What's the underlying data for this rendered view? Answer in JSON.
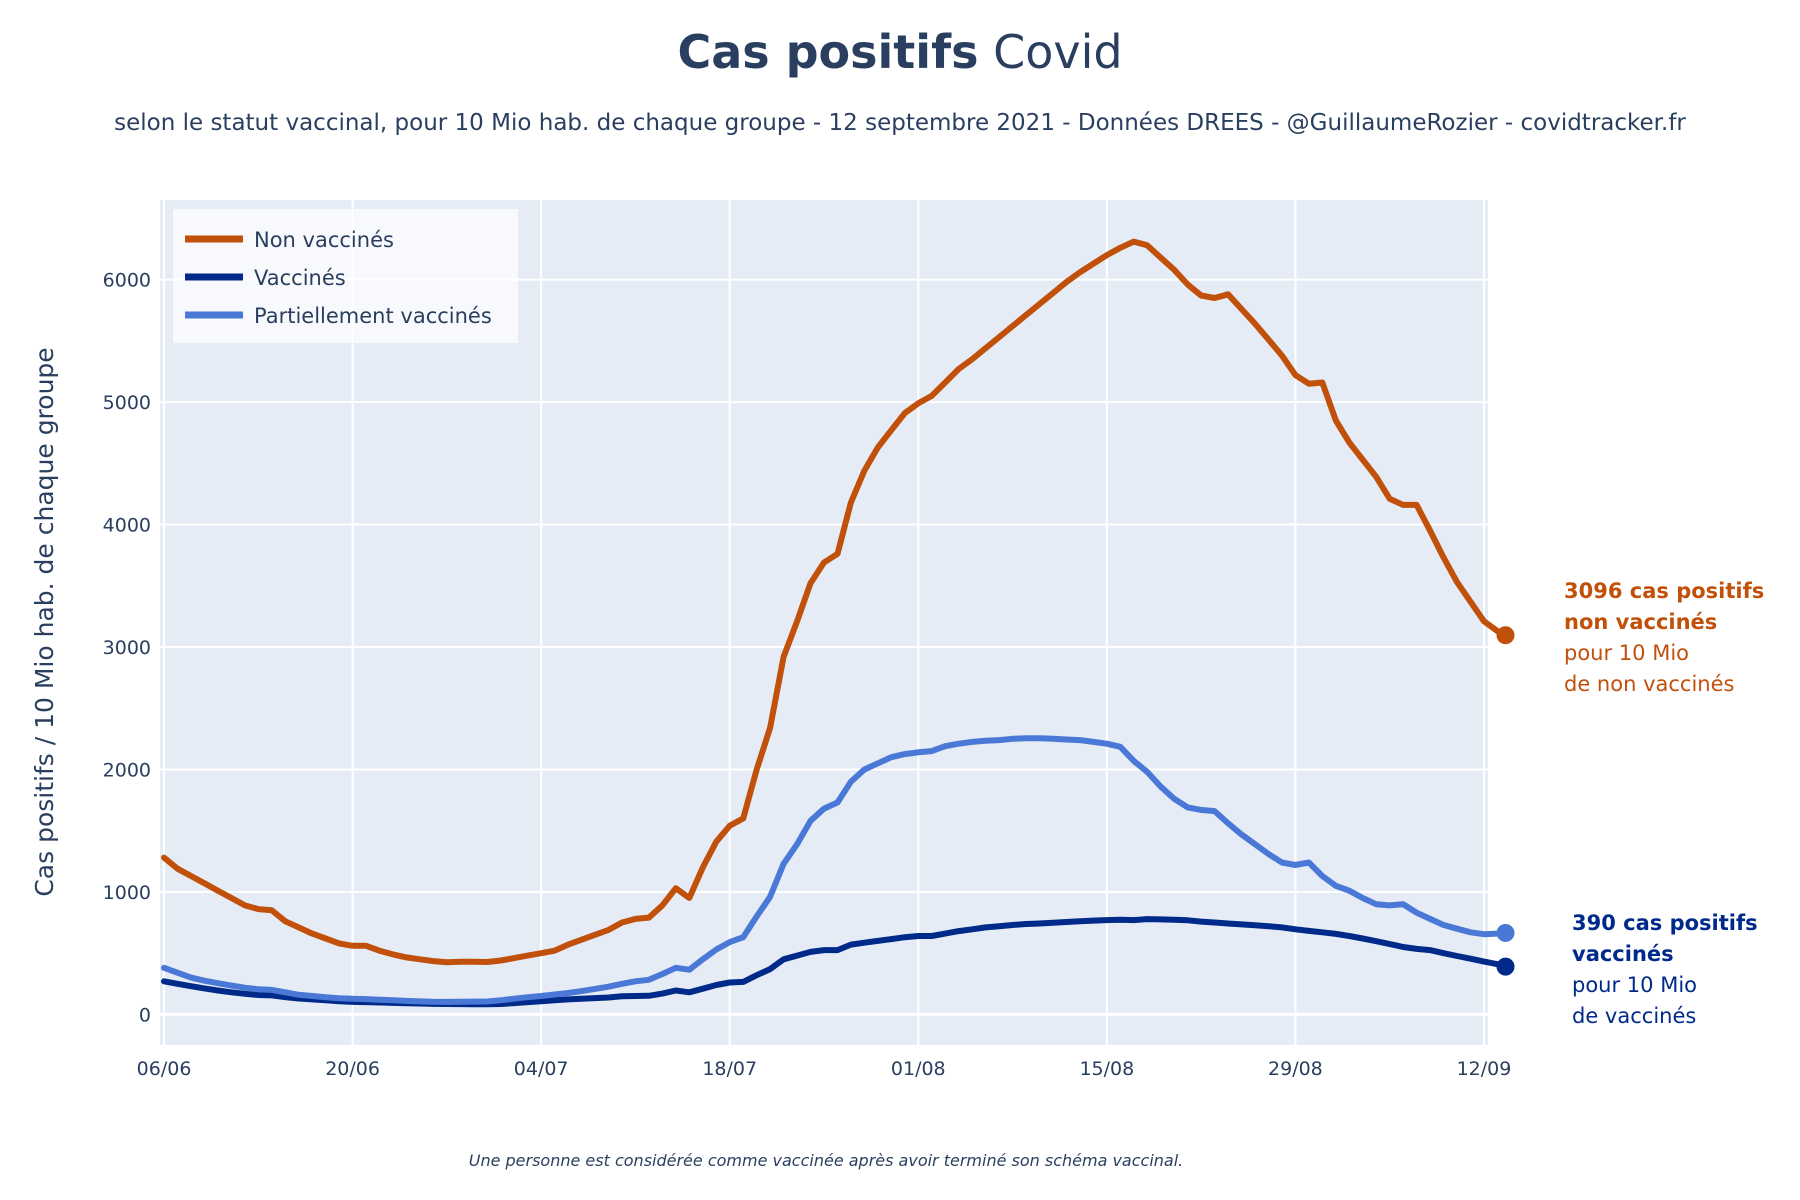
{
  "chart_data": {
    "type": "line",
    "title_bold": "Cas positifs",
    "title_rest": " Covid",
    "subtitle": "selon le statut vaccinal, pour 10 Mio hab. de chaque groupe - 12 septembre 2021 - Données DREES - @GuillaumeRozier - covidtracker.fr",
    "ylabel": "Cas positifs / 10 Mio hab. de chaque groupe",
    "xlabel": "",
    "footnote": "Une personne est considérée comme vaccinée après avoir terminé son schéma vaccinal.",
    "ylim": [
      -250,
      6650
    ],
    "yticks": [
      0,
      1000,
      2000,
      3000,
      4000,
      5000,
      6000
    ],
    "xlim": [
      -0.3,
      98.3
    ],
    "xticks": [
      {
        "day": 0,
        "label": "06/06"
      },
      {
        "day": 14,
        "label": "20/06"
      },
      {
        "day": 28,
        "label": "04/07"
      },
      {
        "day": 42,
        "label": "18/07"
      },
      {
        "day": 56,
        "label": "01/08"
      },
      {
        "day": 70,
        "label": "15/08"
      },
      {
        "day": 84,
        "label": "29/08"
      },
      {
        "day": 98,
        "label": "12/09"
      }
    ],
    "legend_position": "top-left",
    "series": [
      {
        "name": "Non vaccinés",
        "color": "#c1500a",
        "points": [
          [
            0,
            1280
          ],
          [
            1,
            1190
          ],
          [
            2,
            1130
          ],
          [
            3,
            1070
          ],
          [
            4,
            1010
          ],
          [
            5,
            950
          ],
          [
            6,
            890
          ],
          [
            7,
            860
          ],
          [
            8,
            850
          ],
          [
            9,
            760
          ],
          [
            10,
            710
          ],
          [
            11,
            660
          ],
          [
            12,
            620
          ],
          [
            13,
            580
          ],
          [
            14,
            560
          ],
          [
            15,
            560
          ],
          [
            16,
            520
          ],
          [
            17,
            490
          ],
          [
            18,
            465
          ],
          [
            19,
            450
          ],
          [
            20,
            435
          ],
          [
            21,
            425
          ],
          [
            22,
            430
          ],
          [
            23,
            430
          ],
          [
            24,
            428
          ],
          [
            25,
            440
          ],
          [
            26,
            460
          ],
          [
            27,
            480
          ],
          [
            28,
            500
          ],
          [
            29,
            520
          ],
          [
            30,
            570
          ],
          [
            31,
            610
          ],
          [
            32,
            650
          ],
          [
            33,
            690
          ],
          [
            34,
            750
          ],
          [
            35,
            780
          ],
          [
            36,
            790
          ],
          [
            37,
            890
          ],
          [
            38,
            1030
          ],
          [
            39,
            950
          ],
          [
            40,
            1200
          ],
          [
            41,
            1410
          ],
          [
            42,
            1540
          ],
          [
            43,
            1600
          ],
          [
            44,
            2000
          ],
          [
            45,
            2340
          ],
          [
            46,
            2920
          ],
          [
            47,
            3210
          ],
          [
            48,
            3520
          ],
          [
            49,
            3690
          ],
          [
            50,
            3760
          ],
          [
            51,
            4180
          ],
          [
            52,
            4440
          ],
          [
            53,
            4630
          ],
          [
            54,
            4770
          ],
          [
            55,
            4910
          ],
          [
            56,
            4990
          ],
          [
            57,
            5050
          ],
          [
            58,
            5160
          ],
          [
            59,
            5270
          ],
          [
            60,
            5350
          ],
          [
            61,
            5440
          ],
          [
            62,
            5530
          ],
          [
            63,
            5620
          ],
          [
            64,
            5710
          ],
          [
            65,
            5800
          ],
          [
            66,
            5890
          ],
          [
            67,
            5980
          ],
          [
            68,
            6060
          ],
          [
            69,
            6130
          ],
          [
            70,
            6200
          ],
          [
            71,
            6260
          ],
          [
            72,
            6310
          ],
          [
            73,
            6280
          ],
          [
            74,
            6180
          ],
          [
            75,
            6080
          ],
          [
            76,
            5960
          ],
          [
            77,
            5870
          ],
          [
            78,
            5850
          ],
          [
            79,
            5880
          ],
          [
            80,
            5760
          ],
          [
            81,
            5640
          ],
          [
            82,
            5510
          ],
          [
            83,
            5380
          ],
          [
            84,
            5220
          ],
          [
            85,
            5150
          ],
          [
            86,
            5160
          ],
          [
            87,
            4850
          ],
          [
            88,
            4670
          ],
          [
            89,
            4530
          ],
          [
            90,
            4390
          ],
          [
            91,
            4210
          ],
          [
            92,
            4160
          ],
          [
            93,
            4160
          ],
          [
            94,
            3950
          ],
          [
            95,
            3730
          ],
          [
            96,
            3530
          ],
          [
            97,
            3370
          ],
          [
            98,
            3210
          ],
          [
            99,
            3130
          ],
          [
            99.6,
            3096
          ]
        ]
      },
      {
        "name": "Vaccinés",
        "color": "#002a8a",
        "points": [
          [
            0,
            270
          ],
          [
            1,
            250
          ],
          [
            2,
            230
          ],
          [
            3,
            212
          ],
          [
            4,
            195
          ],
          [
            5,
            180
          ],
          [
            6,
            168
          ],
          [
            7,
            158
          ],
          [
            8,
            155
          ],
          [
            9,
            140
          ],
          [
            10,
            130
          ],
          [
            11,
            122
          ],
          [
            12,
            115
          ],
          [
            13,
            108
          ],
          [
            14,
            102
          ],
          [
            15,
            100
          ],
          [
            16,
            97
          ],
          [
            17,
            94
          ],
          [
            18,
            91
          ],
          [
            19,
            89
          ],
          [
            20,
            86
          ],
          [
            21,
            85
          ],
          [
            22,
            84
          ],
          [
            23,
            83
          ],
          [
            24,
            82
          ],
          [
            25,
            85
          ],
          [
            26,
            92
          ],
          [
            27,
            100
          ],
          [
            28,
            108
          ],
          [
            29,
            115
          ],
          [
            30,
            122
          ],
          [
            31,
            128
          ],
          [
            32,
            133
          ],
          [
            33,
            138
          ],
          [
            34,
            148
          ],
          [
            35,
            150
          ],
          [
            36,
            152
          ],
          [
            37,
            170
          ],
          [
            38,
            195
          ],
          [
            39,
            180
          ],
          [
            40,
            210
          ],
          [
            41,
            240
          ],
          [
            42,
            260
          ],
          [
            43,
            265
          ],
          [
            44,
            320
          ],
          [
            45,
            370
          ],
          [
            46,
            450
          ],
          [
            47,
            480
          ],
          [
            48,
            510
          ],
          [
            49,
            525
          ],
          [
            50,
            525
          ],
          [
            51,
            570
          ],
          [
            52,
            585
          ],
          [
            53,
            600
          ],
          [
            54,
            615
          ],
          [
            55,
            630
          ],
          [
            56,
            640
          ],
          [
            57,
            640
          ],
          [
            58,
            660
          ],
          [
            59,
            680
          ],
          [
            60,
            695
          ],
          [
            61,
            710
          ],
          [
            62,
            720
          ],
          [
            63,
            730
          ],
          [
            64,
            738
          ],
          [
            65,
            742
          ],
          [
            66,
            748
          ],
          [
            67,
            754
          ],
          [
            68,
            760
          ],
          [
            69,
            766
          ],
          [
            70,
            770
          ],
          [
            71,
            772
          ],
          [
            72,
            770
          ],
          [
            73,
            778
          ],
          [
            74,
            776
          ],
          [
            75,
            772
          ],
          [
            76,
            768
          ],
          [
            77,
            758
          ],
          [
            78,
            750
          ],
          [
            79,
            742
          ],
          [
            80,
            735
          ],
          [
            81,
            728
          ],
          [
            82,
            720
          ],
          [
            83,
            710
          ],
          [
            84,
            695
          ],
          [
            85,
            682
          ],
          [
            86,
            670
          ],
          [
            87,
            657
          ],
          [
            88,
            640
          ],
          [
            89,
            620
          ],
          [
            90,
            598
          ],
          [
            91,
            575
          ],
          [
            92,
            550
          ],
          [
            93,
            535
          ],
          [
            94,
            525
          ],
          [
            95,
            500
          ],
          [
            96,
            477
          ],
          [
            97,
            455
          ],
          [
            98,
            432
          ],
          [
            99,
            410
          ],
          [
            99.6,
            390
          ]
        ]
      },
      {
        "name": "Partiellement vaccinés",
        "color": "#4a78d6",
        "points": [
          [
            0,
            380
          ],
          [
            1,
            340
          ],
          [
            2,
            300
          ],
          [
            3,
            275
          ],
          [
            4,
            255
          ],
          [
            5,
            235
          ],
          [
            6,
            218
          ],
          [
            7,
            205
          ],
          [
            8,
            200
          ],
          [
            9,
            180
          ],
          [
            10,
            160
          ],
          [
            11,
            150
          ],
          [
            12,
            140
          ],
          [
            13,
            132
          ],
          [
            14,
            127
          ],
          [
            15,
            125
          ],
          [
            16,
            120
          ],
          [
            17,
            115
          ],
          [
            18,
            110
          ],
          [
            19,
            106
          ],
          [
            20,
            103
          ],
          [
            21,
            102
          ],
          [
            22,
            103
          ],
          [
            23,
            104
          ],
          [
            24,
            105
          ],
          [
            25,
            115
          ],
          [
            26,
            128
          ],
          [
            27,
            140
          ],
          [
            28,
            150
          ],
          [
            29,
            162
          ],
          [
            30,
            175
          ],
          [
            31,
            190
          ],
          [
            32,
            208
          ],
          [
            33,
            226
          ],
          [
            34,
            250
          ],
          [
            35,
            270
          ],
          [
            36,
            282
          ],
          [
            37,
            330
          ],
          [
            38,
            380
          ],
          [
            39,
            365
          ],
          [
            40,
            450
          ],
          [
            41,
            530
          ],
          [
            42,
            590
          ],
          [
            43,
            630
          ],
          [
            44,
            800
          ],
          [
            45,
            960
          ],
          [
            46,
            1230
          ],
          [
            47,
            1390
          ],
          [
            48,
            1580
          ],
          [
            49,
            1680
          ],
          [
            50,
            1730
          ],
          [
            51,
            1900
          ],
          [
            52,
            2000
          ],
          [
            53,
            2050
          ],
          [
            54,
            2100
          ],
          [
            55,
            2125
          ],
          [
            56,
            2140
          ],
          [
            57,
            2150
          ],
          [
            58,
            2190
          ],
          [
            59,
            2210
          ],
          [
            60,
            2225
          ],
          [
            61,
            2235
          ],
          [
            62,
            2240
          ],
          [
            63,
            2250
          ],
          [
            64,
            2255
          ],
          [
            65,
            2255
          ],
          [
            66,
            2250
          ],
          [
            67,
            2245
          ],
          [
            68,
            2240
          ],
          [
            69,
            2225
          ],
          [
            70,
            2210
          ],
          [
            71,
            2185
          ],
          [
            72,
            2070
          ],
          [
            73,
            1980
          ],
          [
            74,
            1860
          ],
          [
            75,
            1760
          ],
          [
            76,
            1690
          ],
          [
            77,
            1670
          ],
          [
            78,
            1660
          ],
          [
            79,
            1560
          ],
          [
            80,
            1470
          ],
          [
            81,
            1390
          ],
          [
            82,
            1310
          ],
          [
            83,
            1240
          ],
          [
            84,
            1220
          ],
          [
            85,
            1240
          ],
          [
            86,
            1130
          ],
          [
            87,
            1050
          ],
          [
            88,
            1010
          ],
          [
            89,
            950
          ],
          [
            90,
            900
          ],
          [
            91,
            890
          ],
          [
            92,
            900
          ],
          [
            93,
            830
          ],
          [
            94,
            780
          ],
          [
            95,
            730
          ],
          [
            96,
            700
          ],
          [
            97,
            670
          ],
          [
            98,
            655
          ],
          [
            99,
            660
          ],
          [
            99.6,
            665
          ]
        ]
      }
    ],
    "annotations": [
      {
        "series": 0,
        "value": 3096,
        "line1": "3096 cas positifs",
        "line2": "non vaccinés",
        "line3": "pour 10 Mio",
        "line4": "de non vaccinés",
        "color": "#c1500a"
      },
      {
        "series": 1,
        "value": 390,
        "line1": "390 cas positifs",
        "line2": "vaccinés",
        "line3": "pour 10 Mio",
        "line4": "de vaccinés",
        "color": "#002a8a"
      }
    ]
  }
}
